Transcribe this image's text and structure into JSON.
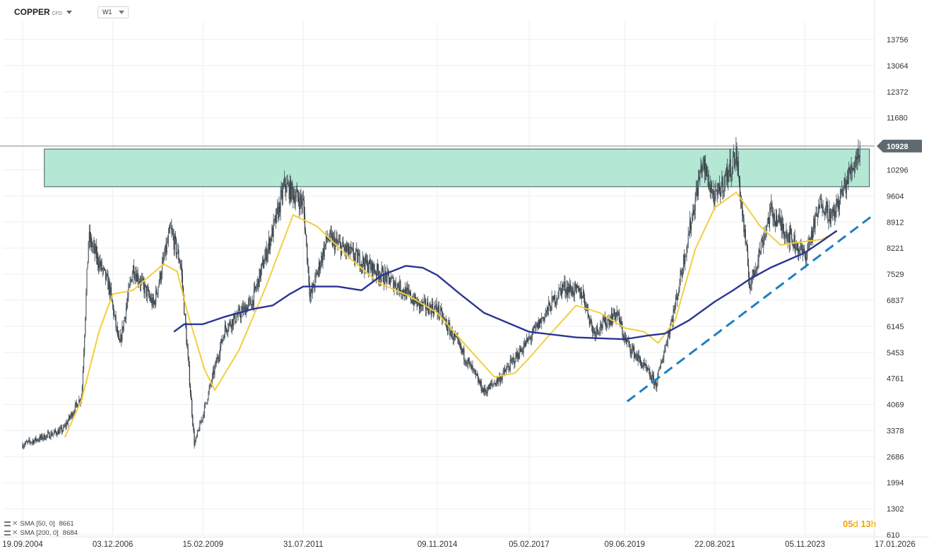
{
  "header": {
    "symbol": "COPPER",
    "symbol_suffix": "CFD",
    "timeframe": "W1"
  },
  "indicators": [
    {
      "label": "SMA [50, 0]",
      "value": "8661",
      "color": "#f2cf3c"
    },
    {
      "label": "SMA [200, 0]",
      "value": "8684",
      "color": "#2b3593"
    }
  ],
  "countdown": {
    "days": "05",
    "days_unit": "d",
    "hours": "13",
    "hours_unit": "h"
  },
  "chart_data": {
    "type": "candlestick",
    "title": "COPPER",
    "timeframe": "W1",
    "y_ticks": [
      13756,
      13064,
      12372,
      11680,
      10296,
      9604,
      8912,
      8221,
      7529,
      6837,
      6145,
      5453,
      4761,
      4069,
      3378,
      2686,
      1994,
      1302,
      610
    ],
    "x_ticks": [
      "19.09.2004",
      "03.12.2006",
      "15.02.2009",
      "31.07.2011",
      "09.11.2014",
      "05.02.2017",
      "09.06.2019",
      "22.08.2021",
      "05.11.2023",
      "17.01.2026"
    ],
    "ylim": [
      610,
      14300
    ],
    "current_price": 10928,
    "current_price_label": "10928",
    "price_path": [
      [
        "19.09.2004",
        3000
      ],
      [
        "15.09.2005",
        3400
      ],
      [
        "01.03.2006",
        4300
      ],
      [
        "01.05.2006",
        8500
      ],
      [
        "01.11.2006",
        7200
      ],
      [
        "01.02.2007",
        5600
      ],
      [
        "01.06.2007",
        7700
      ],
      [
        "03.12.2007",
        6700
      ],
      [
        "01.05.2008",
        8700
      ],
      [
        "01.08.2008",
        7800
      ],
      [
        "01.12.2008",
        3000
      ],
      [
        "15.02.2009",
        3800
      ],
      [
        "01.09.2009",
        6100
      ],
      [
        "01.05.2010",
        6800
      ],
      [
        "01.12.2010",
        9000
      ],
      [
        "15.02.2011",
        9900
      ],
      [
        "31.07.2011",
        9400
      ],
      [
        "01.10.2011",
        6900
      ],
      [
        "01.03.2012",
        8500
      ],
      [
        "01.12.2013",
        7200
      ],
      [
        "01.06.2014",
        6700
      ],
      [
        "09.11.2014",
        6600
      ],
      [
        "01.07.2015",
        5400
      ],
      [
        "01.01.2016",
        4400
      ],
      [
        "01.06.2016",
        4800
      ],
      [
        "05.02.2017",
        5800
      ],
      [
        "01.12.2017",
        7200
      ],
      [
        "01.06.2018",
        7000
      ],
      [
        "01.09.2018",
        6000
      ],
      [
        "01.04.2019",
        6500
      ],
      [
        "09.06.2019",
        5800
      ],
      [
        "15.03.2020",
        4600
      ],
      [
        "01.09.2020",
        6700
      ],
      [
        "01.05.2021",
        10500
      ],
      [
        "22.08.2021",
        9500
      ],
      [
        "01.03.2022",
        10700
      ],
      [
        "01.07.2022",
        7200
      ],
      [
        "01.01.2023",
        9200
      ],
      [
        "05.11.2023",
        8000
      ],
      [
        "01.04.2024",
        9500
      ],
      [
        "01.07.2024",
        9000
      ],
      [
        "15.03.2025",
        10928
      ]
    ],
    "series": [
      {
        "name": "SMA [50, 0]",
        "color": "#f2cf3c",
        "points": [
          [
            "01.10.2005",
            3200
          ],
          [
            "01.03.2006",
            4200
          ],
          [
            "01.08.2006",
            6000
          ],
          [
            "03.12.2006",
            7000
          ],
          [
            "01.06.2007",
            7100
          ],
          [
            "01.03.2008",
            7800
          ],
          [
            "01.07.2008",
            7600
          ],
          [
            "01.10.2008",
            6500
          ],
          [
            "01.03.2009",
            5000
          ],
          [
            "01.06.2009",
            4450
          ],
          [
            "01.01.2010",
            5500
          ],
          [
            "01.09.2010",
            7200
          ],
          [
            "01.05.2011",
            9100
          ],
          [
            "01.12.2011",
            8800
          ],
          [
            "01.09.2012",
            8000
          ],
          [
            "01.06.2013",
            7300
          ],
          [
            "01.03.2014",
            6950
          ],
          [
            "09.11.2014",
            6500
          ],
          [
            "01.09.2015",
            5500
          ],
          [
            "01.04.2016",
            4800
          ],
          [
            "01.10.2016",
            4900
          ],
          [
            "05.02.2017",
            5300
          ],
          [
            "01.08.2017",
            5900
          ],
          [
            "01.04.2018",
            6700
          ],
          [
            "01.11.2018",
            6500
          ],
          [
            "09.06.2019",
            6100
          ],
          [
            "01.12.2019",
            6000
          ],
          [
            "01.04.2020",
            5700
          ],
          [
            "01.09.2020",
            6300
          ],
          [
            "01.03.2021",
            8200
          ],
          [
            "22.08.2021",
            9300
          ],
          [
            "01.03.2022",
            9700
          ],
          [
            "01.10.2022",
            8800
          ],
          [
            "01.04.2023",
            8300
          ],
          [
            "05.11.2023",
            8400
          ],
          [
            "01.04.2024",
            8450
          ],
          [
            "15.08.2024",
            8661
          ]
        ]
      },
      {
        "name": "SMA [200, 0]",
        "color": "#2b3593",
        "points": [
          [
            "01.06.2008",
            6000
          ],
          [
            "01.09.2008",
            6200
          ],
          [
            "15.02.2009",
            6200
          ],
          [
            "01.09.2009",
            6400
          ],
          [
            "01.05.2010",
            6600
          ],
          [
            "01.11.2010",
            6700
          ],
          [
            "01.04.2011",
            7000
          ],
          [
            "31.07.2011",
            7200
          ],
          [
            "01.06.2012",
            7200
          ],
          [
            "01.01.2013",
            7100
          ],
          [
            "01.07.2013",
            7500
          ],
          [
            "01.02.2014",
            7750
          ],
          [
            "01.07.2014",
            7700
          ],
          [
            "09.11.2014",
            7500
          ],
          [
            "01.06.2015",
            7000
          ],
          [
            "01.01.2016",
            6500
          ],
          [
            "05.02.2017",
            6000
          ],
          [
            "01.04.2018",
            5850
          ],
          [
            "09.06.2019",
            5800
          ],
          [
            "01.01.2020",
            5900
          ],
          [
            "01.06.2020",
            5950
          ],
          [
            "01.01.2021",
            6300
          ],
          [
            "22.08.2021",
            6800
          ],
          [
            "01.02.2022",
            7100
          ],
          [
            "01.07.2022",
            7400
          ],
          [
            "01.01.2023",
            7700
          ],
          [
            "05.11.2023",
            8100
          ],
          [
            "01.04.2024",
            8400
          ],
          [
            "15.08.2024",
            8684
          ]
        ]
      }
    ],
    "resistance_zone": {
      "x_from": "01.04.2005",
      "x_to": "01.06.2025",
      "y_from": 9850,
      "y_to": 10850,
      "color": "#b4e8d5"
    },
    "trendline": {
      "x_from": "01.07.2019",
      "y_from": 4150,
      "x_to": "15.06.2025",
      "y_to": 9050,
      "color": "#1d7fbf",
      "style": "dashed"
    },
    "grid": true,
    "legend_position": "bottom-left"
  }
}
